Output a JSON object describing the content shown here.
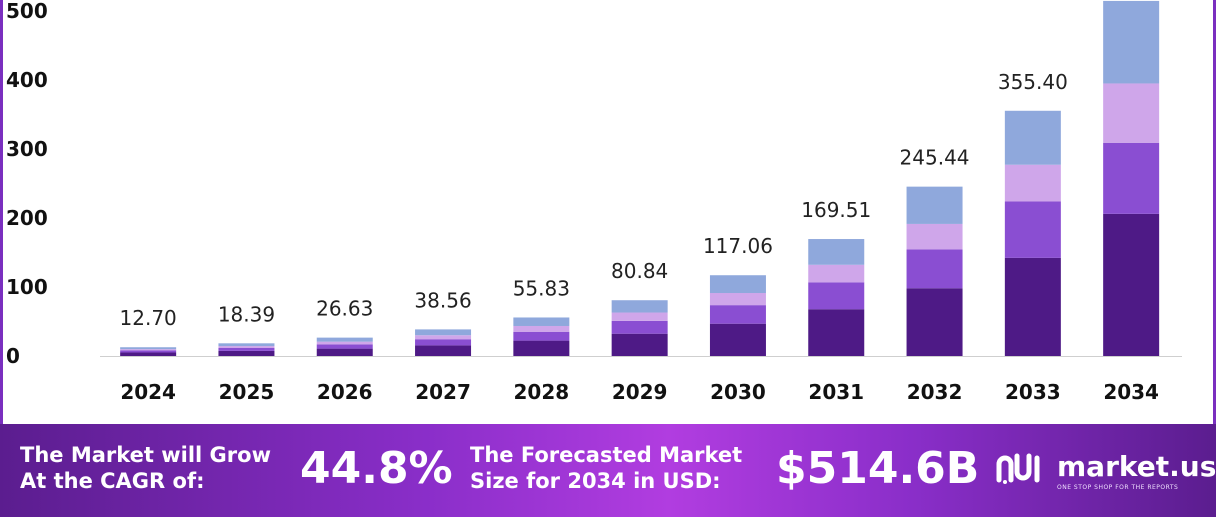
{
  "chart_data": {
    "type": "bar",
    "stacked": true,
    "categories": [
      "2024",
      "2025",
      "2026",
      "2027",
      "2028",
      "2029",
      "2030",
      "2031",
      "2032",
      "2033",
      "2034"
    ],
    "totals": [
      "12.70",
      "18.39",
      "26.63",
      "38.56",
      "55.83",
      "80.84",
      "117.06",
      "169.51",
      "245.44",
      "355.40",
      ""
    ],
    "total_values": [
      12.7,
      18.39,
      26.63,
      38.56,
      55.83,
      80.84,
      117.06,
      169.51,
      245.44,
      355.4,
      514.6
    ],
    "series": [
      {
        "color": "#4e1a86",
        "values": [
          5.1,
          7.4,
          10.7,
          15.4,
          22.3,
          32.3,
          46.8,
          67.8,
          98.2,
          142.2,
          206.0
        ]
      },
      {
        "color": "#8a4ed2",
        "values": [
          2.9,
          4.2,
          6.1,
          8.9,
          12.8,
          18.6,
          26.9,
          39.0,
          56.4,
          81.7,
          103.0
        ]
      },
      {
        "color": "#cfa6ea",
        "values": [
          1.9,
          2.8,
          4.0,
          5.8,
          8.4,
          12.1,
          17.6,
          25.4,
          36.8,
          53.3,
          86.0
        ]
      },
      {
        "color": "#8fa8dc",
        "values": [
          2.8,
          3.99,
          5.83,
          8.46,
          12.33,
          17.84,
          25.76,
          37.31,
          54.04,
          78.2,
          119.6
        ]
      }
    ],
    "ylim": [
      0,
      500
    ],
    "yticks": [
      "0",
      "100",
      "200",
      "300",
      "400",
      "500"
    ],
    "ytick_values": [
      0,
      100,
      200,
      300,
      400,
      500
    ],
    "grid": false
  },
  "footer": {
    "cagr_label_line1": "The Market will Grow",
    "cagr_label_line2": "At the CAGR of:",
    "cagr_value": "44.8%",
    "forecast_label_line1": "The Forecasted Market",
    "forecast_label_line2": "Size for 2034 in USD:",
    "forecast_value": "$514.6B",
    "brand_name": "market.us",
    "brand_tagline": "ONE STOP SHOP FOR THE REPORTS"
  }
}
